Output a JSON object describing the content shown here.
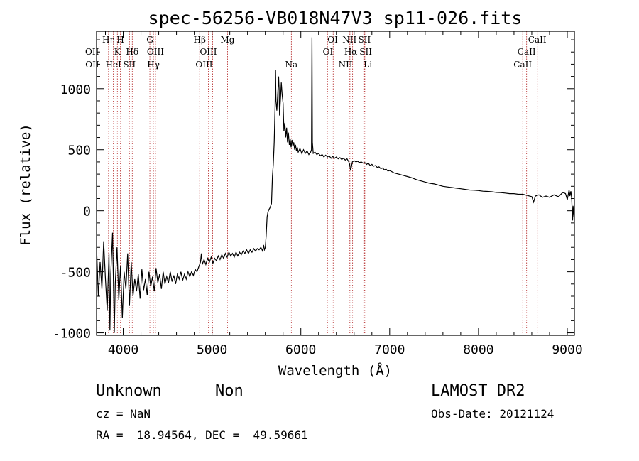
{
  "chart_data": {
    "type": "line",
    "title": "spec-56256-VB018N47V3_sp11-026.fits",
    "xlabel": "Wavelength (Å)",
    "ylabel": "Flux (relative)",
    "xlim": [
      3700,
      9080
    ],
    "ylim": [
      -1020,
      1470
    ],
    "xticks": [
      4000,
      5000,
      6000,
      7000,
      8000,
      9000
    ],
    "yticks": [
      -1000,
      -500,
      0,
      500,
      1000
    ],
    "grid": false,
    "series": [
      {
        "points": [
          [
            3700,
            -300
          ],
          [
            3720,
            -700
          ],
          [
            3740,
            -420
          ],
          [
            3760,
            -640
          ],
          [
            3780,
            -250
          ],
          [
            3800,
            -560
          ],
          [
            3820,
            -820
          ],
          [
            3840,
            -350
          ],
          [
            3850,
            -980
          ],
          [
            3860,
            -520
          ],
          [
            3880,
            -180
          ],
          [
            3900,
            -1000
          ],
          [
            3910,
            -600
          ],
          [
            3930,
            -300
          ],
          [
            3950,
            -730
          ],
          [
            3970,
            -450
          ],
          [
            3990,
            -880
          ],
          [
            4010,
            -500
          ],
          [
            4030,
            -640
          ],
          [
            4050,
            -350
          ],
          [
            4070,
            -780
          ],
          [
            4090,
            -420
          ],
          [
            4110,
            -700
          ],
          [
            4130,
            -560
          ],
          [
            4150,
            -660
          ],
          [
            4170,
            -520
          ],
          [
            4190,
            -720
          ],
          [
            4210,
            -480
          ],
          [
            4230,
            -650
          ],
          [
            4250,
            -560
          ],
          [
            4270,
            -690
          ],
          [
            4290,
            -500
          ],
          [
            4310,
            -620
          ],
          [
            4330,
            -540
          ],
          [
            4350,
            -660
          ],
          [
            4370,
            -470
          ],
          [
            4390,
            -590
          ],
          [
            4410,
            -520
          ],
          [
            4430,
            -640
          ],
          [
            4450,
            -500
          ],
          [
            4470,
            -600
          ],
          [
            4490,
            -540
          ],
          [
            4510,
            -590
          ],
          [
            4530,
            -500
          ],
          [
            4550,
            -580
          ],
          [
            4570,
            -530
          ],
          [
            4590,
            -600
          ],
          [
            4610,
            -520
          ],
          [
            4630,
            -560
          ],
          [
            4650,
            -500
          ],
          [
            4670,
            -570
          ],
          [
            4690,
            -520
          ],
          [
            4710,
            -560
          ],
          [
            4730,
            -500
          ],
          [
            4750,
            -540
          ],
          [
            4770,
            -500
          ],
          [
            4790,
            -530
          ],
          [
            4810,
            -480
          ],
          [
            4830,
            -500
          ],
          [
            4850,
            -460
          ],
          [
            4870,
            -420
          ],
          [
            4880,
            -350
          ],
          [
            4890,
            -440
          ],
          [
            4910,
            -400
          ],
          [
            4930,
            -440
          ],
          [
            4950,
            -390
          ],
          [
            4970,
            -420
          ],
          [
            4990,
            -380
          ],
          [
            5010,
            -430
          ],
          [
            5030,
            -390
          ],
          [
            5050,
            -410
          ],
          [
            5070,
            -370
          ],
          [
            5090,
            -400
          ],
          [
            5110,
            -360
          ],
          [
            5130,
            -390
          ],
          [
            5150,
            -350
          ],
          [
            5170,
            -380
          ],
          [
            5190,
            -340
          ],
          [
            5210,
            -370
          ],
          [
            5230,
            -350
          ],
          [
            5250,
            -380
          ],
          [
            5270,
            -340
          ],
          [
            5290,
            -370
          ],
          [
            5310,
            -340
          ],
          [
            5330,
            -360
          ],
          [
            5350,
            -330
          ],
          [
            5370,
            -350
          ],
          [
            5390,
            -320
          ],
          [
            5410,
            -350
          ],
          [
            5430,
            -320
          ],
          [
            5450,
            -340
          ],
          [
            5470,
            -310
          ],
          [
            5490,
            -330
          ],
          [
            5510,
            -310
          ],
          [
            5530,
            -320
          ],
          [
            5550,
            -300
          ],
          [
            5570,
            -330
          ],
          [
            5580,
            -280
          ],
          [
            5590,
            -320
          ],
          [
            5600,
            -300
          ],
          [
            5610,
            -200
          ],
          [
            5620,
            -50
          ],
          [
            5630,
            -10
          ],
          [
            5640,
            10
          ],
          [
            5650,
            20
          ],
          [
            5660,
            40
          ],
          [
            5670,
            60
          ],
          [
            5680,
            280
          ],
          [
            5690,
            380
          ],
          [
            5700,
            560
          ],
          [
            5710,
            850
          ],
          [
            5715,
            1150
          ],
          [
            5720,
            900
          ],
          [
            5730,
            820
          ],
          [
            5740,
            960
          ],
          [
            5750,
            1100
          ],
          [
            5755,
            1000
          ],
          [
            5760,
            780
          ],
          [
            5770,
            900
          ],
          [
            5780,
            1050
          ],
          [
            5790,
            950
          ],
          [
            5800,
            880
          ],
          [
            5810,
            650
          ],
          [
            5820,
            720
          ],
          [
            5830,
            600
          ],
          [
            5840,
            680
          ],
          [
            5850,
            560
          ],
          [
            5860,
            640
          ],
          [
            5870,
            540
          ],
          [
            5880,
            590
          ],
          [
            5890,
            520
          ],
          [
            5900,
            580
          ],
          [
            5910,
            530
          ],
          [
            5920,
            560
          ],
          [
            5930,
            500
          ],
          [
            5940,
            540
          ],
          [
            5950,
            490
          ],
          [
            5960,
            520
          ],
          [
            5970,
            480
          ],
          [
            5990,
            510
          ],
          [
            6010,
            470
          ],
          [
            6030,
            500
          ],
          [
            6050,
            470
          ],
          [
            6070,
            490
          ],
          [
            6090,
            460
          ],
          [
            6110,
            480
          ],
          [
            6120,
            500
          ],
          [
            6125,
            1420
          ],
          [
            6130,
            560
          ],
          [
            6140,
            470
          ],
          [
            6160,
            480
          ],
          [
            6180,
            460
          ],
          [
            6200,
            470
          ],
          [
            6220,
            450
          ],
          [
            6240,
            460
          ],
          [
            6260,
            440
          ],
          [
            6280,
            455
          ],
          [
            6300,
            440
          ],
          [
            6320,
            450
          ],
          [
            6340,
            430
          ],
          [
            6360,
            445
          ],
          [
            6380,
            430
          ],
          [
            6400,
            440
          ],
          [
            6420,
            425
          ],
          [
            6440,
            435
          ],
          [
            6460,
            420
          ],
          [
            6480,
            430
          ],
          [
            6500,
            415
          ],
          [
            6520,
            425
          ],
          [
            6540,
            400
          ],
          [
            6550,
            380
          ],
          [
            6560,
            330
          ],
          [
            6570,
            360
          ],
          [
            6580,
            400
          ],
          [
            6600,
            410
          ],
          [
            6620,
            400
          ],
          [
            6640,
            405
          ],
          [
            6660,
            395
          ],
          [
            6680,
            400
          ],
          [
            6700,
            390
          ],
          [
            6720,
            395
          ],
          [
            6740,
            380
          ],
          [
            6760,
            390
          ],
          [
            6780,
            370
          ],
          [
            6800,
            380
          ],
          [
            6820,
            365
          ],
          [
            6840,
            370
          ],
          [
            6860,
            355
          ],
          [
            6880,
            360
          ],
          [
            6900,
            345
          ],
          [
            6920,
            350
          ],
          [
            6940,
            335
          ],
          [
            6960,
            340
          ],
          [
            6980,
            325
          ],
          [
            7000,
            330
          ],
          [
            7050,
            310
          ],
          [
            7100,
            300
          ],
          [
            7150,
            290
          ],
          [
            7200,
            280
          ],
          [
            7250,
            270
          ],
          [
            7300,
            255
          ],
          [
            7350,
            245
          ],
          [
            7400,
            235
          ],
          [
            7450,
            225
          ],
          [
            7500,
            220
          ],
          [
            7550,
            210
          ],
          [
            7600,
            200
          ],
          [
            7650,
            195
          ],
          [
            7700,
            190
          ],
          [
            7750,
            185
          ],
          [
            7800,
            180
          ],
          [
            7850,
            175
          ],
          [
            7900,
            170
          ],
          [
            7950,
            168
          ],
          [
            8000,
            165
          ],
          [
            8050,
            160
          ],
          [
            8100,
            158
          ],
          [
            8150,
            155
          ],
          [
            8200,
            150
          ],
          [
            8250,
            148
          ],
          [
            8300,
            145
          ],
          [
            8350,
            140
          ],
          [
            8400,
            140
          ],
          [
            8450,
            135
          ],
          [
            8500,
            135
          ],
          [
            8550,
            125
          ],
          [
            8600,
            115
          ],
          [
            8620,
            70
          ],
          [
            8640,
            120
          ],
          [
            8680,
            130
          ],
          [
            8720,
            110
          ],
          [
            8760,
            120
          ],
          [
            8800,
            110
          ],
          [
            8850,
            130
          ],
          [
            8900,
            115
          ],
          [
            8950,
            150
          ],
          [
            8980,
            140
          ],
          [
            9000,
            90
          ],
          [
            9020,
            170
          ],
          [
            9030,
            120
          ],
          [
            9040,
            160
          ],
          [
            9050,
            100
          ],
          [
            9055,
            -10
          ],
          [
            9060,
            -80
          ],
          [
            9065,
            40
          ],
          [
            9075,
            -50
          ],
          [
            9080,
            -30
          ]
        ]
      }
    ],
    "lines": [
      {
        "label": "OII",
        "x": 3727,
        "row": 2,
        "align": "end"
      },
      {
        "label": "OII",
        "x": 3729,
        "row": 3,
        "align": "end"
      },
      {
        "label": "Hη",
        "x": 3835,
        "row": 1,
        "align": "middle"
      },
      {
        "label": "K",
        "x": 3934,
        "row": 2,
        "align": "middle"
      },
      {
        "label": "HeI",
        "x": 3889,
        "row": 3,
        "align": "middle"
      },
      {
        "label": "H",
        "x": 3969,
        "row": 1,
        "align": "middle"
      },
      {
        "label": "SII",
        "x": 4070,
        "row": 3,
        "align": "middle"
      },
      {
        "label": "Hδ",
        "x": 4102,
        "row": 2,
        "align": "middle"
      },
      {
        "label": "G",
        "x": 4300,
        "row": 1,
        "align": "middle"
      },
      {
        "label": "OIII",
        "x": 4363,
        "row": 2,
        "align": "middle"
      },
      {
        "label": "Hγ",
        "x": 4340,
        "row": 3,
        "align": "middle"
      },
      {
        "label": "Hβ",
        "x": 4861,
        "row": 1,
        "align": "middle"
      },
      {
        "label": "OIII",
        "x": 4959,
        "row": 2,
        "align": "middle"
      },
      {
        "label": "OIII",
        "x": 5007,
        "row": 3,
        "align": "end"
      },
      {
        "label": "Mg",
        "x": 5175,
        "row": 1,
        "align": "middle"
      },
      {
        "label": "Na",
        "x": 5893,
        "row": 3,
        "align": "middle"
      },
      {
        "label": "OI",
        "x": 6300,
        "row": 1,
        "align": "start"
      },
      {
        "label": "OI",
        "x": 6364,
        "row": 2,
        "align": "end"
      },
      {
        "label": "NII",
        "x": 6548,
        "row": 1,
        "align": "middle"
      },
      {
        "label": "Hα",
        "x": 6563,
        "row": 2,
        "align": "middle"
      },
      {
        "label": "NII",
        "x": 6583,
        "row": 3,
        "align": "end"
      },
      {
        "label": "SII",
        "x": 6717,
        "row": 1,
        "align": "middle"
      },
      {
        "label": "SII",
        "x": 6731,
        "row": 2,
        "align": "middle"
      },
      {
        "label": "Li",
        "x": 6708,
        "row": 3,
        "align": "start"
      },
      {
        "label": "CaII",
        "x": 8498,
        "row": 3,
        "align": "middle"
      },
      {
        "label": "CaII",
        "x": 8542,
        "row": 2,
        "align": "middle"
      },
      {
        "label": "CaII",
        "x": 8662,
        "row": 1,
        "align": "middle"
      }
    ]
  },
  "footer": {
    "class_label": "Unknown",
    "subclass_label": "Non",
    "survey": "LAMOST DR2",
    "cz": "cz = NaN",
    "obs_date": "Obs-Date: 20121124",
    "coords": "RA =  18.94564, DEC =  49.59661"
  },
  "colors": {
    "line_marker": "#b22222",
    "spectrum": "#000000"
  }
}
